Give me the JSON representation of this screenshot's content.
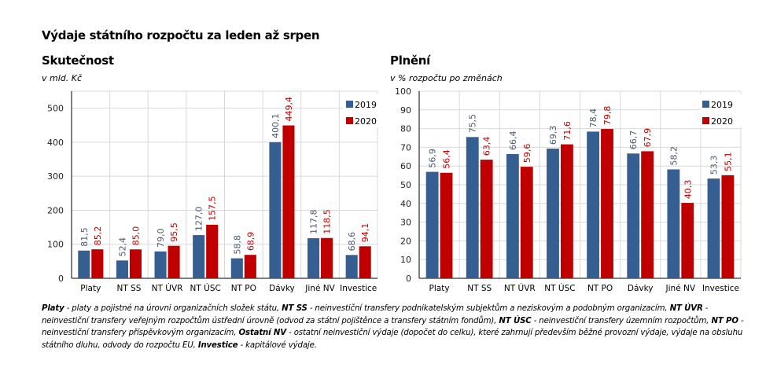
{
  "title": "Výdaje státního rozpočtu za leden až srpen",
  "colors": {
    "s2019": "#365f91",
    "s2020": "#c00000",
    "label2019": "#4a5a6e",
    "label2020": "#c00000",
    "grid": "#d9d9d9",
    "axis": "#000000"
  },
  "chart_data": [
    {
      "type": "bar",
      "title": "Skutečnost",
      "subtitle": "v mld. Kč",
      "xlabel": "",
      "ylabel": "v mld. Kč",
      "categories": [
        "Platy",
        "NT SS",
        "NT ÚVR",
        "NT ÚSC",
        "NT PO",
        "Dávky",
        "Jiné NV",
        "Investice"
      ],
      "series": [
        {
          "name": "2019",
          "values": [
            81.5,
            52.4,
            79.0,
            127.0,
            58.8,
            400.1,
            117.8,
            68.6
          ],
          "labels": [
            "81,5",
            "52,4",
            "79,0",
            "127,0",
            "58,8",
            "400,1",
            "117,8",
            "68,6"
          ]
        },
        {
          "name": "2020",
          "values": [
            85.2,
            85.0,
            95.5,
            157.5,
            68.9,
            449.4,
            118.5,
            94.1
          ],
          "labels": [
            "85,2",
            "85,0",
            "95,5",
            "157,5",
            "68,9",
            "449,4",
            "118,5",
            "94,1"
          ]
        }
      ],
      "ylim": [
        0,
        550
      ],
      "yticks": [
        0,
        100,
        200,
        300,
        400,
        500
      ],
      "grid": true,
      "legend": "top-right"
    },
    {
      "type": "bar",
      "title": "Plnění",
      "subtitle": "v % rozpočtu po změnách",
      "xlabel": "",
      "ylabel": "v % rozpočtu po změnách",
      "categories": [
        "Platy",
        "NT SS",
        "NT ÚVR",
        "NT ÚSC",
        "NT PO",
        "Dávky",
        "Jiné NV",
        "Investice"
      ],
      "series": [
        {
          "name": "2019",
          "values": [
            56.9,
            75.5,
            66.4,
            69.3,
            78.4,
            66.7,
            58.2,
            53.3
          ],
          "labels": [
            "56,9",
            "75,5",
            "66,4",
            "69,3",
            "78,4",
            "66,7",
            "58,2",
            "53,3"
          ]
        },
        {
          "name": "2020",
          "values": [
            56.4,
            63.4,
            59.6,
            71.6,
            79.8,
            67.9,
            40.3,
            55.1
          ],
          "labels": [
            "56,4",
            "63,4",
            "59,6",
            "71,6",
            "79,8",
            "67,9",
            "40,3",
            "55,1"
          ]
        }
      ],
      "ylim": [
        0,
        100
      ],
      "yticks": [
        0,
        10,
        20,
        30,
        40,
        50,
        60,
        70,
        80,
        90,
        100
      ],
      "grid": true,
      "legend": "top-right"
    }
  ],
  "footnote": [
    {
      "b": "Platy",
      "t": " - platy a pojistné na úrovni organizačních složek státu, "
    },
    {
      "b": "NT SS",
      "t": " - neinvestiční transfery podnikatelským subjektům a neziskovým a podobným organizacím, "
    },
    {
      "b": "NT ÚVR",
      "t": " - neinvestiční transfery veřejným rozpočtům ústřední úrovně (odvod za státní pojištěnce a transfery státním fondům), "
    },
    {
      "b": "NT ÚSC",
      "t": " - neinvestiční transfery územním rozpočtům, "
    },
    {
      "b": "NT PO",
      "t": " - neinvestiční transfery příspěvkovým organizacím, "
    },
    {
      "b": "Ostatní NV",
      "t": " - ostatní neinvestiční výdaje (dopočet do celku), které zahrnují především běžné provozní výdaje, výdaje na obsluhu státního dluhu, odvody do rozpočtu EU, "
    },
    {
      "b": "Investice",
      "t": " - kapitálové výdaje."
    }
  ]
}
